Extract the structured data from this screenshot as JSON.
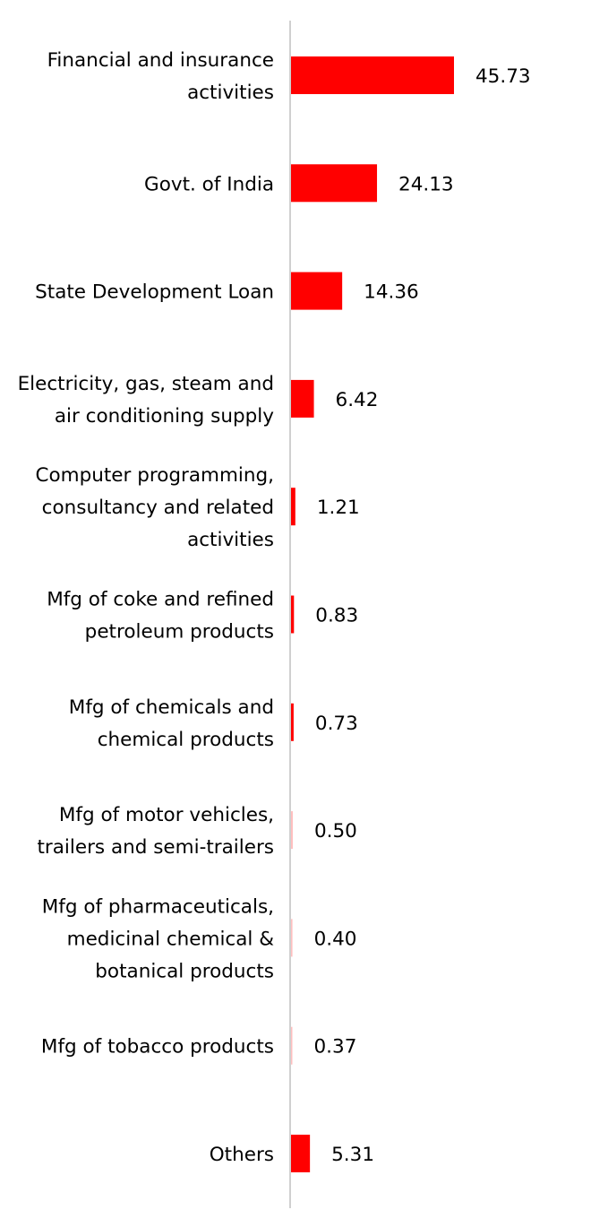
{
  "chart_data": {
    "type": "bar",
    "orientation": "horizontal",
    "categories": [
      [
        "Financial and insurance",
        "activities"
      ],
      [
        "Govt. of India"
      ],
      [
        "State Development Loan"
      ],
      [
        "Electricity, gas, steam and",
        "air conditioning supply"
      ],
      [
        "Computer programming,",
        "consultancy and related",
        "activities"
      ],
      [
        "Mfg of coke and refined",
        "petroleum products"
      ],
      [
        "Mfg of chemicals and",
        "chemical products"
      ],
      [
        "Mfg of motor vehicles,",
        "trailers and semi-trailers"
      ],
      [
        "Mfg of pharmaceuticals,",
        "medicinal chemical &",
        "botanical products"
      ],
      [
        "Mfg of tobacco products"
      ],
      [
        "Others"
      ]
    ],
    "values": [
      45.73,
      24.13,
      14.36,
      6.42,
      1.21,
      0.83,
      0.73,
      0.5,
      0.4,
      0.37,
      5.31
    ],
    "value_labels": [
      "45.73",
      "24.13",
      "14.36",
      "6.42",
      "1.21",
      "0.83",
      "0.73",
      "0.50",
      "0.40",
      "0.37",
      "5.31"
    ],
    "bar_color": "#ff0000",
    "axis_color": "#d0d0d0",
    "xlim": [
      0,
      45.73
    ],
    "grid": false,
    "legend": "none"
  }
}
